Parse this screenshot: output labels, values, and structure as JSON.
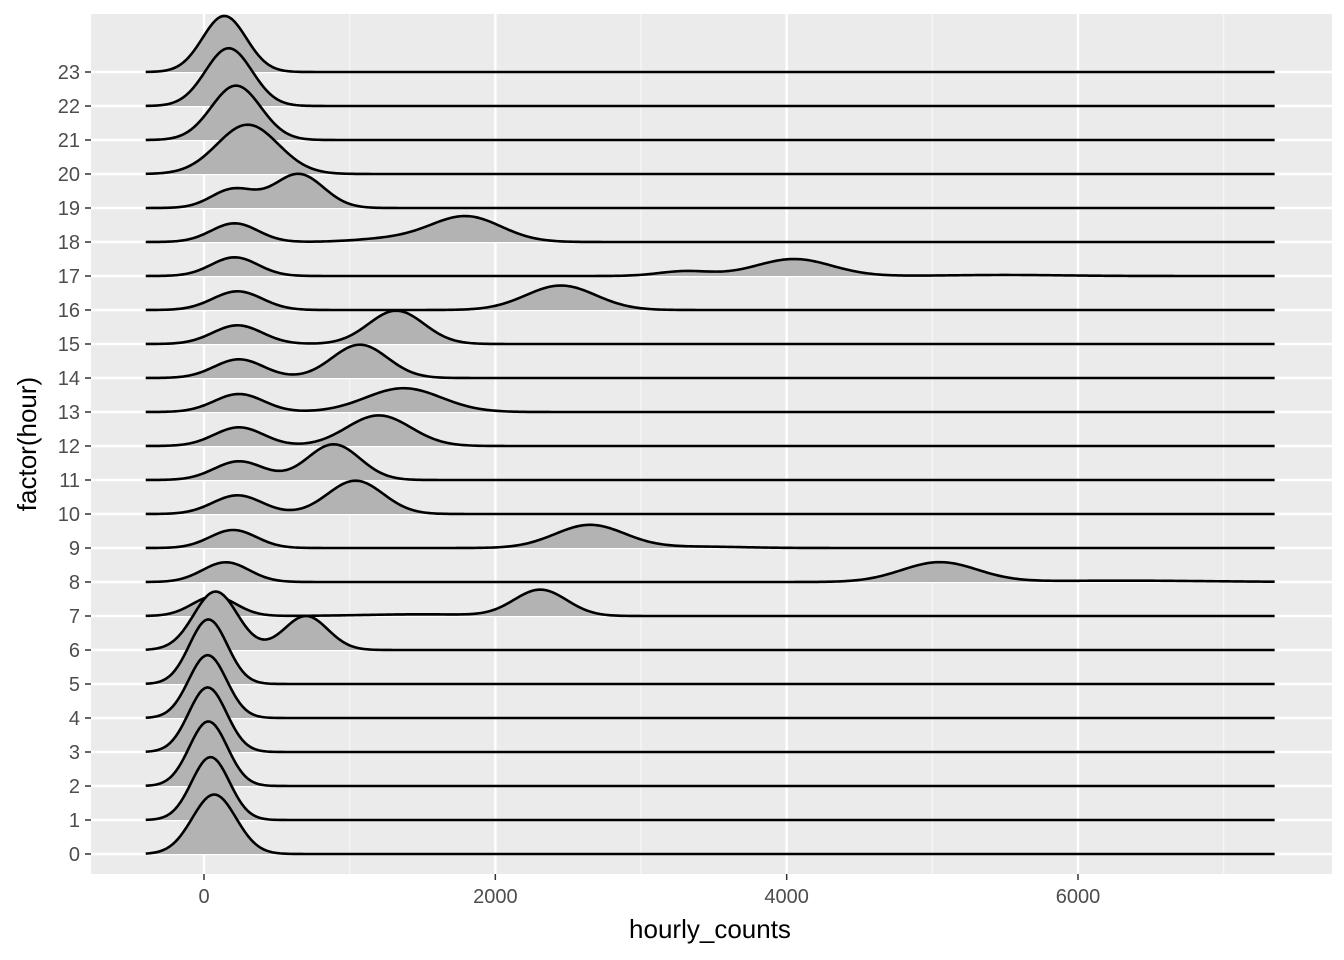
{
  "chart_data": {
    "type": "ridgeline",
    "xlabel": "hourly_counts",
    "ylabel": "factor(hour)",
    "xlim": [
      -400,
      7350
    ],
    "x_ticks": [
      0,
      2000,
      4000,
      6000
    ],
    "x_tick_labels": [
      "0",
      "2000",
      "4000",
      "6000"
    ],
    "grid": true,
    "fill_color": "#b3b3b3",
    "line_color": "#000000",
    "panel_color": "#ebebeb",
    "density_unit": "relative height (1 = one row spacing)",
    "series": [
      {
        "name": "0",
        "peaks": [
          {
            "center": 70,
            "sd": 150,
            "height": 1.75
          }
        ]
      },
      {
        "name": "1",
        "peaks": [
          {
            "center": 45,
            "sd": 130,
            "height": 1.85
          }
        ]
      },
      {
        "name": "2",
        "peaks": [
          {
            "center": 30,
            "sd": 130,
            "height": 1.9
          }
        ]
      },
      {
        "name": "3",
        "peaks": [
          {
            "center": 25,
            "sd": 130,
            "height": 1.9
          }
        ]
      },
      {
        "name": "4",
        "peaks": [
          {
            "center": 25,
            "sd": 130,
            "height": 1.85
          }
        ]
      },
      {
        "name": "5",
        "peaks": [
          {
            "center": 30,
            "sd": 130,
            "height": 1.9
          }
        ]
      },
      {
        "name": "6",
        "peaks": [
          {
            "center": 80,
            "sd": 150,
            "height": 1.72
          },
          {
            "center": 700,
            "sd": 150,
            "height": 1.0
          }
        ]
      },
      {
        "name": "7",
        "peaks": [
          {
            "center": 70,
            "sd": 150,
            "height": 0.58
          },
          {
            "center": 1500,
            "sd": 400,
            "height": 0.05
          },
          {
            "center": 2310,
            "sd": 180,
            "height": 0.77
          }
        ]
      },
      {
        "name": "8",
        "peaks": [
          {
            "center": 150,
            "sd": 160,
            "height": 0.58
          },
          {
            "center": 5050,
            "sd": 260,
            "height": 0.58
          },
          {
            "center": 6300,
            "sd": 600,
            "height": 0.04
          }
        ]
      },
      {
        "name": "9",
        "peaks": [
          {
            "center": 200,
            "sd": 160,
            "height": 0.53
          },
          {
            "center": 2650,
            "sd": 240,
            "height": 0.68
          },
          {
            "center": 3400,
            "sd": 300,
            "height": 0.04
          }
        ]
      },
      {
        "name": "10",
        "peaks": [
          {
            "center": 230,
            "sd": 170,
            "height": 0.55
          },
          {
            "center": 1040,
            "sd": 190,
            "height": 0.98
          }
        ]
      },
      {
        "name": "11",
        "peaks": [
          {
            "center": 240,
            "sd": 170,
            "height": 0.55
          },
          {
            "center": 890,
            "sd": 180,
            "height": 1.05
          }
        ]
      },
      {
        "name": "12",
        "peaks": [
          {
            "center": 240,
            "sd": 170,
            "height": 0.55
          },
          {
            "center": 1200,
            "sd": 220,
            "height": 0.9
          }
        ]
      },
      {
        "name": "13",
        "peaks": [
          {
            "center": 240,
            "sd": 170,
            "height": 0.53
          },
          {
            "center": 1370,
            "sd": 260,
            "height": 0.7
          }
        ]
      },
      {
        "name": "14",
        "peaks": [
          {
            "center": 240,
            "sd": 170,
            "height": 0.55
          },
          {
            "center": 1070,
            "sd": 190,
            "height": 0.98
          }
        ]
      },
      {
        "name": "15",
        "peaks": [
          {
            "center": 230,
            "sd": 170,
            "height": 0.55
          },
          {
            "center": 1320,
            "sd": 190,
            "height": 0.98
          }
        ]
      },
      {
        "name": "16",
        "peaks": [
          {
            "center": 230,
            "sd": 170,
            "height": 0.55
          },
          {
            "center": 2450,
            "sd": 240,
            "height": 0.72
          }
        ]
      },
      {
        "name": "17",
        "peaks": [
          {
            "center": 210,
            "sd": 160,
            "height": 0.55
          },
          {
            "center": 3300,
            "sd": 180,
            "height": 0.14
          },
          {
            "center": 4050,
            "sd": 260,
            "height": 0.5
          },
          {
            "center": 5500,
            "sd": 400,
            "height": 0.03
          }
        ]
      },
      {
        "name": "18",
        "peaks": [
          {
            "center": 210,
            "sd": 160,
            "height": 0.55
          },
          {
            "center": 1800,
            "sd": 240,
            "height": 0.75
          },
          {
            "center": 1300,
            "sd": 250,
            "height": 0.1
          }
        ]
      },
      {
        "name": "19",
        "peaks": [
          {
            "center": 200,
            "sd": 150,
            "height": 0.55
          },
          {
            "center": 650,
            "sd": 170,
            "height": 1.0
          }
        ]
      },
      {
        "name": "20",
        "peaks": [
          {
            "center": 300,
            "sd": 210,
            "height": 1.45
          }
        ]
      },
      {
        "name": "21",
        "peaks": [
          {
            "center": 220,
            "sd": 170,
            "height": 1.6
          }
        ]
      },
      {
        "name": "22",
        "peaks": [
          {
            "center": 170,
            "sd": 160,
            "height": 1.7
          }
        ]
      },
      {
        "name": "23",
        "peaks": [
          {
            "center": 140,
            "sd": 150,
            "height": 1.65
          }
        ]
      }
    ]
  }
}
